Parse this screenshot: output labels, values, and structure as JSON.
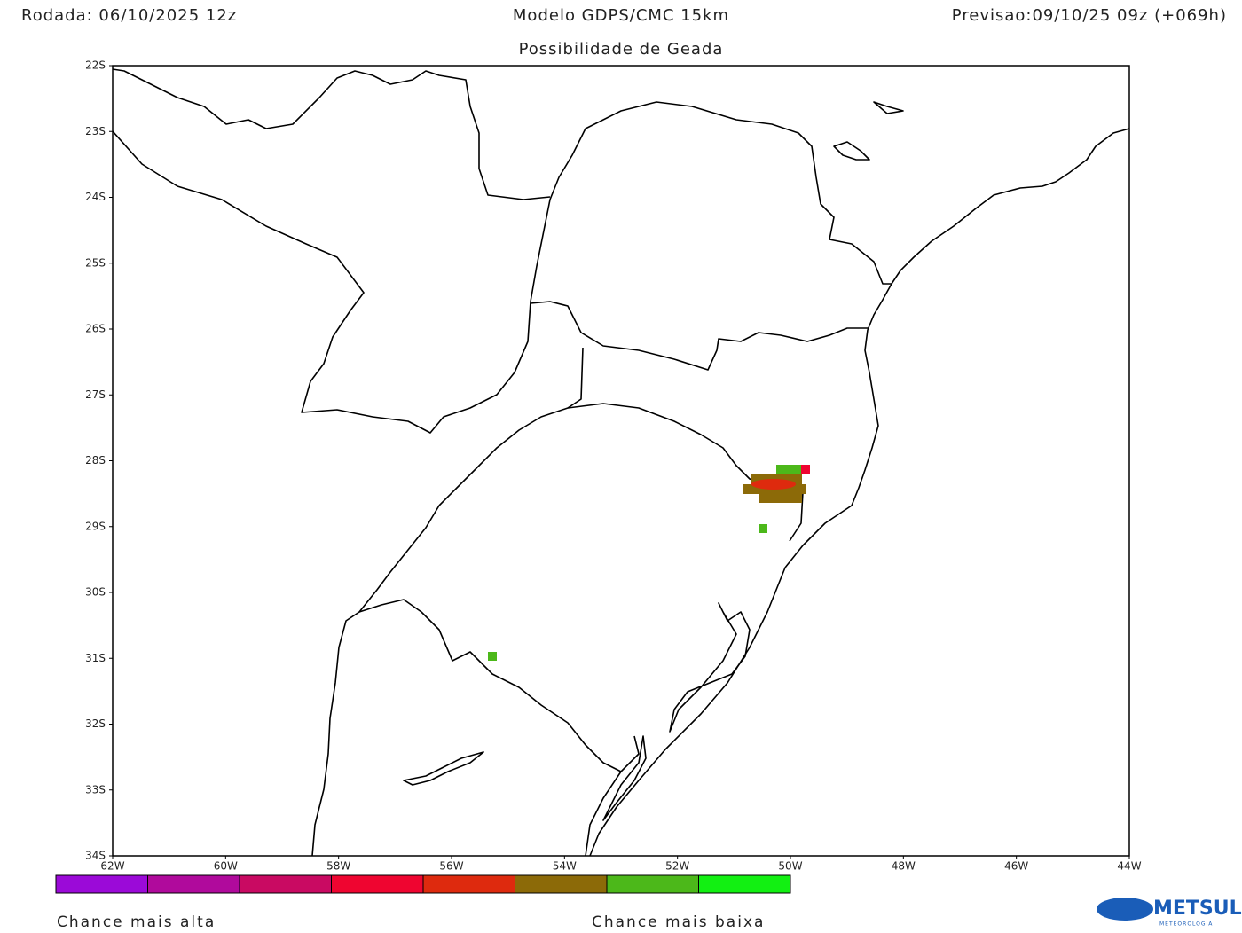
{
  "header": {
    "run": "Rodada: 06/10/2025 12z",
    "model": "Modelo GDPS/CMC 15km",
    "forecast": "Previsao:09/10/25 09z (+069h)"
  },
  "map": {
    "title": "Possibilidade de Geada",
    "lat_labels": [
      "22S",
      "23S",
      "24S",
      "25S",
      "26S",
      "27S",
      "28S",
      "29S",
      "30S",
      "31S",
      "32S",
      "33S",
      "34S"
    ],
    "lon_labels": [
      "62W",
      "60W",
      "58W",
      "56W",
      "54W",
      "52W",
      "50W",
      "48W",
      "46W",
      "44W"
    ]
  },
  "legend": {
    "colors": [
      "#9b0ad8",
      "#b00a9c",
      "#c90a62",
      "#ef0530",
      "#de2a0e",
      "#8c6a08",
      "#4cb81a",
      "#12f012"
    ],
    "high": "Chance mais alta",
    "low": "Chance mais baixa"
  },
  "logo": {
    "name": "METSUL",
    "tagline": "METEOROLOGIA"
  }
}
